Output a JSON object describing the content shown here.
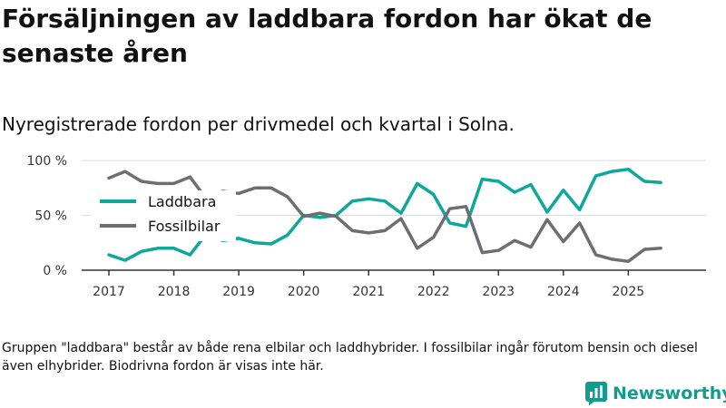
{
  "title": "Försäljningen av laddbara fordon har ökat de senaste åren",
  "subtitle": "Nyregistrerade fordon per drivmedel och kvartal i Solna.",
  "note": "Gruppen \"laddbara\" består av både rena elbilar och laddhybrider. I fossilbilar ingår förutom bensin och diesel även elhybrider. Biodrivna fordon är visas inte här.",
  "brand": {
    "name": "Newsworthy",
    "icon": "newsworthy-logo-icon"
  },
  "colors": {
    "laddbara": "#0ea89a",
    "fossilbilar": "#6e6e72",
    "grid": "#dddddd",
    "axis": "#333333"
  },
  "chart_data": {
    "type": "line",
    "title": "Nyregistrerade fordon per drivmedel och kvartal i Solna.",
    "xlabel": "",
    "ylabel": "",
    "x_ticks": [
      "2017",
      "2018",
      "2019",
      "2020",
      "2021",
      "2022",
      "2023",
      "2024",
      "2025"
    ],
    "y_ticks": [
      "0 %",
      "50 %",
      "100 %"
    ],
    "ylim": [
      0,
      100
    ],
    "xlim": [
      2017,
      2025.75
    ],
    "legend_position": "left",
    "x": [
      2017,
      2017.25,
      2017.5,
      2017.75,
      2018,
      2018.25,
      2018.5,
      2018.75,
      2019,
      2019.25,
      2019.5,
      2019.75,
      2020,
      2020.25,
      2020.5,
      2020.75,
      2021,
      2021.25,
      2021.5,
      2021.75,
      2022,
      2022.25,
      2022.5,
      2022.75,
      2023,
      2023.25,
      2023.5,
      2023.75,
      2024,
      2024.25,
      2024.5,
      2024.75,
      2025,
      2025.25,
      2025.5
    ],
    "series": [
      {
        "name": "Laddbara",
        "color": "#0ea89a",
        "values": [
          14,
          9,
          17,
          20,
          20,
          14,
          33,
          27,
          29,
          25,
          24,
          32,
          50,
          48,
          50,
          63,
          65,
          63,
          52,
          79,
          69,
          43,
          40,
          83,
          81,
          71,
          78,
          53,
          73,
          55,
          86,
          90,
          92,
          81,
          80
        ]
      },
      {
        "name": "Fossilbilar",
        "color": "#6e6e72",
        "values": [
          84,
          90,
          81,
          79,
          79,
          85,
          65,
          72,
          70,
          75,
          75,
          67,
          49,
          52,
          49,
          36,
          34,
          36,
          47,
          20,
          30,
          56,
          58,
          16,
          18,
          27,
          21,
          46,
          26,
          43,
          14,
          10,
          8,
          19,
          20
        ]
      }
    ]
  }
}
